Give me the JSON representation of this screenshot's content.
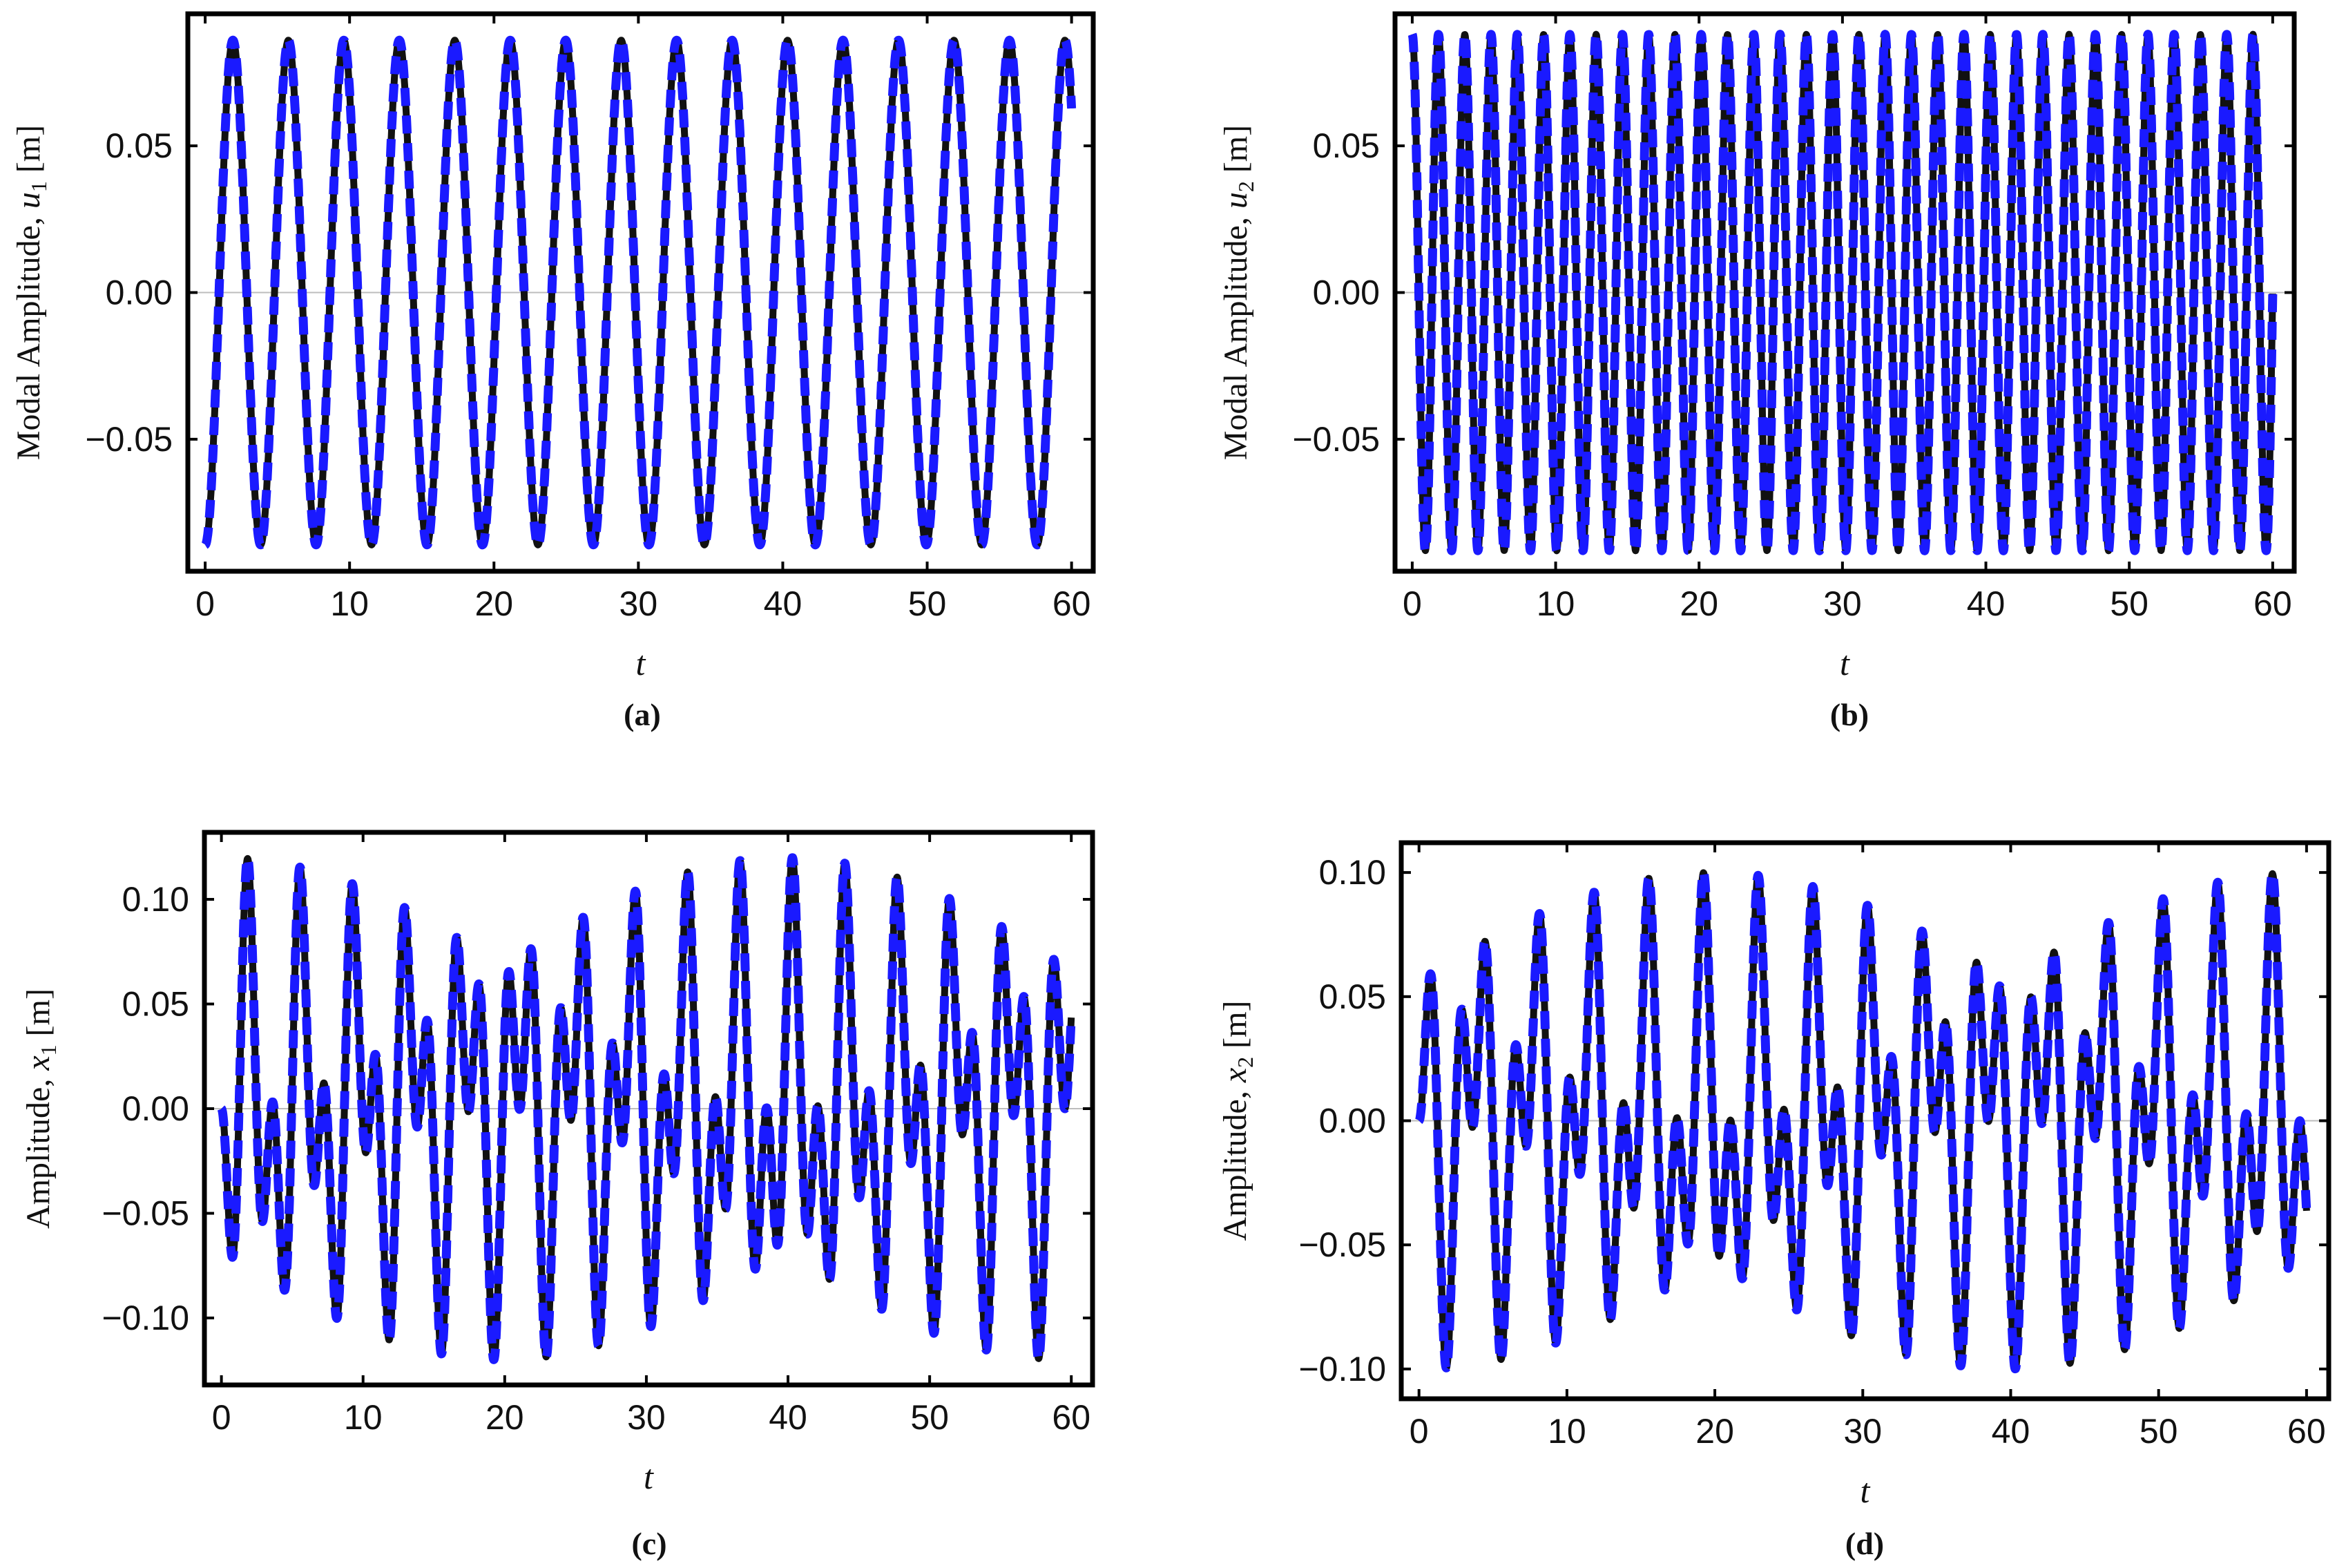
{
  "colors": {
    "reference": "#111111",
    "approximation": "#1a1aff",
    "zero_line": "#bdbdbd"
  },
  "chart_data": [
    {
      "id": "a",
      "type": "line",
      "caption": "(a)",
      "xlabel": "t",
      "ylabel_prefix": "Modal Amplitude, ",
      "ylabel_var": "u",
      "ylabel_sub": "1",
      "ylabel_unit": " [m]",
      "xlim": [
        -1.2,
        61.5
      ],
      "ylim": [
        -0.095,
        0.095
      ],
      "xticks": [
        0,
        10,
        20,
        30,
        40,
        50,
        60
      ],
      "xtick_labels": [
        "0",
        "10",
        "20",
        "30",
        "40",
        "50",
        "60"
      ],
      "yticks": [
        -0.05,
        0,
        0.05
      ],
      "ytick_labels": [
        "−0.05",
        "0.00",
        "0.05"
      ],
      "signal": {
        "amplitude": 0.086,
        "components": [
          {
            "a": 1.0,
            "w": 1.6357,
            "phi": 3.1416
          }
        ]
      },
      "t_end": 60,
      "series": [
        {
          "name": "reference",
          "style": "solid black"
        },
        {
          "name": "approximation",
          "style": "dashed blue"
        }
      ]
    },
    {
      "id": "b",
      "type": "line",
      "caption": "(b)",
      "xlabel": "t",
      "ylabel_prefix": "Modal Amplitude, ",
      "ylabel_var": "u",
      "ylabel_sub": "2",
      "ylabel_unit": " [m]",
      "xlim": [
        -1.2,
        61.5
      ],
      "ylim": [
        -0.095,
        0.095
      ],
      "xticks": [
        0,
        10,
        20,
        30,
        40,
        50,
        60
      ],
      "xtick_labels": [
        "0",
        "10",
        "20",
        "30",
        "40",
        "50",
        "60"
      ],
      "yticks": [
        -0.05,
        0,
        0.05
      ],
      "ytick_labels": [
        "−0.05",
        "0.00",
        "0.05"
      ],
      "signal": {
        "amplitude": 0.088,
        "components": [
          {
            "a": 1.0,
            "w": 3.4295,
            "phi": 0
          }
        ]
      },
      "t_end": 60,
      "series": [
        {
          "name": "reference",
          "style": "solid black"
        },
        {
          "name": "approximation",
          "style": "dashed blue"
        }
      ]
    },
    {
      "id": "c",
      "type": "line",
      "caption": "(c)",
      "xlabel": "t",
      "ylabel_prefix": "Amplitude, ",
      "ylabel_var": "x",
      "ylabel_sub": "1",
      "ylabel_unit": " [m]",
      "xlim": [
        -1.2,
        61.5
      ],
      "ylim": [
        -0.132,
        0.132
      ],
      "xticks": [
        0,
        10,
        20,
        30,
        40,
        50,
        60
      ],
      "xtick_labels": [
        "0",
        "10",
        "20",
        "30",
        "40",
        "50",
        "60"
      ],
      "yticks": [
        -0.1,
        -0.05,
        0,
        0.05,
        0.1
      ],
      "ytick_labels": [
        "−0.10",
        "−0.05",
        "0.00",
        "0.05",
        "0.10"
      ],
      "signal": {
        "amplitude": 1.0,
        "components": [
          {
            "a": 0.06,
            "w": 1.6357,
            "phi": 3.1416
          },
          {
            "a": 0.06,
            "w": 3.4295,
            "phi": 0
          }
        ]
      },
      "t_end": 60,
      "series": [
        {
          "name": "reference",
          "style": "solid black"
        },
        {
          "name": "approximation",
          "style": "dashed blue"
        }
      ]
    },
    {
      "id": "d",
      "type": "line",
      "caption": "(d)",
      "xlabel": "t",
      "ylabel_prefix": "Amplitude, ",
      "ylabel_var": "x",
      "ylabel_sub": "2",
      "ylabel_unit": " [m]",
      "xlim": [
        -1.2,
        61.5
      ],
      "ylim": [
        -0.112,
        0.112
      ],
      "xticks": [
        0,
        10,
        20,
        30,
        40,
        50,
        60
      ],
      "xtick_labels": [
        "0",
        "10",
        "20",
        "30",
        "40",
        "50",
        "60"
      ],
      "yticks": [
        -0.1,
        -0.05,
        0,
        0.05,
        0.1
      ],
      "ytick_labels": [
        "−0.10",
        "−0.05",
        "0.00",
        "0.05",
        "0.10"
      ],
      "signal": {
        "amplitude": 1.0,
        "components": [
          {
            "a": -0.05,
            "w": 1.6357,
            "phi": 3.1416
          },
          {
            "a": -0.05,
            "w": 3.4295,
            "phi": 0
          }
        ]
      },
      "t_end": 60,
      "series": [
        {
          "name": "reference",
          "style": "solid black"
        },
        {
          "name": "approximation",
          "style": "dashed blue"
        }
      ]
    }
  ]
}
